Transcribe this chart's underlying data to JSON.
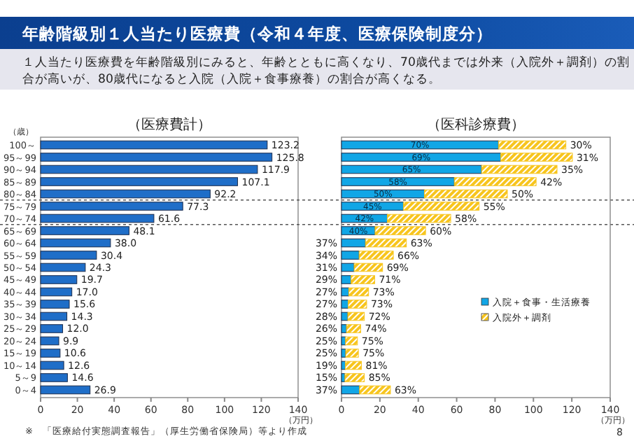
{
  "chart_data": [
    {
      "type": "other",
      "title": "年齢階級別１人当たり医療費（令和４年度、医療保険制度分）",
      "subtitle": "１人当たり医療費を年齢階級別にみると、年齢とともに高くなり、70歳代までは外来（入院外＋調剤）の割合が高いが、80歳代になると入院（入院＋食事療養）の割合が高くなる。",
      "annotations": [
        "※　「医療給付実態調査報告」（厚生労働省保険局）等より作成",
        "8"
      ]
    },
    {
      "type": "bar",
      "orientation": "horizontal",
      "title": "（医療費計）",
      "ylabel": "（歳）",
      "xlabel": "（万円）",
      "categories": [
        "100～",
        "95～99",
        "90～94",
        "85～89",
        "80～84",
        "75～79",
        "70～74",
        "65～69",
        "60～64",
        "55～59",
        "50～54",
        "45～49",
        "40～44",
        "35～39",
        "30～34",
        "25～29",
        "20～24",
        "15～19",
        "10～14",
        "5～9",
        "0～4"
      ],
      "values": [
        123.2,
        125.8,
        117.9,
        107.1,
        92.2,
        77.3,
        61.6,
        48.1,
        38.0,
        30.4,
        24.3,
        19.7,
        17.0,
        15.6,
        14.3,
        12.0,
        9.9,
        10.6,
        12.6,
        14.6,
        26.9
      ],
      "value_labels": [
        "123.2",
        "125.8",
        "117.9",
        "107.1",
        "92.2",
        "77.3",
        "61.6",
        "48.1",
        "38.0",
        "30.4",
        "24.3",
        "19.7",
        "17.0",
        "15.6",
        "14.3",
        "12.0",
        "9.9",
        "10.6",
        "12.6",
        "14.6",
        "26.9"
      ],
      "color": "#1f6ec8",
      "xlim": [
        0,
        140
      ],
      "xticks": [
        0,
        20,
        40,
        60,
        80,
        100,
        120,
        140
      ],
      "ref_lines": [
        {
          "axis": "y",
          "value": "80～84",
          "line_style": "dashed"
        },
        {
          "axis": "y",
          "value": "70～74",
          "line_style": "dashed"
        }
      ]
    },
    {
      "type": "bar",
      "orientation": "horizontal",
      "stacked": true,
      "title": "（医科診療費）",
      "xlabel": "（万円）",
      "tick_labels": "x",
      "legend": "right",
      "categories": [
        null,
        null,
        null,
        null,
        null,
        null,
        null,
        null,
        null,
        null,
        null,
        null,
        null,
        null,
        null,
        null,
        null,
        null,
        null,
        null,
        null
      ],
      "series": [
        {
          "name": "入院＋食事・生活療養",
          "color": "#11a6e6",
          "values": [
            81.8,
            83.0,
            73.0,
            58.8,
            43.2,
            32.3,
            23.9,
            17.5,
            12.5,
            9.2,
            6.6,
            5.0,
            3.8,
            3.5,
            3.3,
            2.6,
            2.1,
            2.2,
            2.0,
            1.8,
            9.4
          ]
        },
        {
          "name": "入院外＋調剤",
          "color": "#f7c51e",
          "values": [
            35.1,
            37.3,
            39.3,
            42.6,
            43.2,
            39.4,
            33.0,
            26.3,
            21.3,
            17.8,
            14.8,
            12.3,
            10.3,
            9.6,
            8.6,
            7.4,
            6.2,
            6.6,
            8.4,
            10.1,
            16.1
          ]
        }
      ],
      "annotations": [
        {
          "text": "70%",
          "x": 40.9
        },
        {
          "text": "69%",
          "x": 41.5
        },
        {
          "text": "65%",
          "x": 36.5
        },
        {
          "text": "58%",
          "x": 29.4
        },
        {
          "text": "50%",
          "x": 21.6
        },
        {
          "text": "45%",
          "x": 16.2
        },
        {
          "text": "42%",
          "x": 12.0
        },
        {
          "text": "40%",
          "x": 8.8
        },
        {
          "text": "37%",
          "x": 12.5
        },
        {
          "text": "34%",
          "x": 9.2
        },
        {
          "text": "31%",
          "x": 6.6
        },
        {
          "text": "29%",
          "x": 5.0
        },
        {
          "text": "27%",
          "x": 3.8
        },
        {
          "text": "27%",
          "x": 3.5
        },
        {
          "text": "28%",
          "x": 3.3
        },
        {
          "text": "26%",
          "x": 2.6
        },
        {
          "text": "25%",
          "x": 2.1
        },
        {
          "text": "25%",
          "x": 2.2
        },
        {
          "text": "19%",
          "x": 2.0
        },
        {
          "text": "15%",
          "x": 1.8
        },
        {
          "text": "37%",
          "x": 9.4
        },
        {
          "text": "30%",
          "x": 116.9
        },
        {
          "text": "31%",
          "x": 120.3
        },
        {
          "text": "35%",
          "x": 112.3
        },
        {
          "text": "42%",
          "x": 101.4
        },
        {
          "text": "50%",
          "x": 86.4
        },
        {
          "text": "55%",
          "x": 71.7
        },
        {
          "text": "58%",
          "x": 56.9
        },
        {
          "text": "60%",
          "x": 43.8
        },
        {
          "text": "63%",
          "x": 33.8
        },
        {
          "text": "66%",
          "x": 27.0
        },
        {
          "text": "69%",
          "x": 21.4
        },
        {
          "text": "71%",
          "x": 17.3
        },
        {
          "text": "73%",
          "x": 14.1
        },
        {
          "text": "73%",
          "x": 13.1
        },
        {
          "text": "72%",
          "x": 11.9
        },
        {
          "text": "74%",
          "x": 10.0
        },
        {
          "text": "75%",
          "x": 8.3
        },
        {
          "text": "75%",
          "x": 8.8
        },
        {
          "text": "81%",
          "x": 10.4
        },
        {
          "text": "85%",
          "x": 11.9
        },
        {
          "text": "63%",
          "x": 25.5
        }
      ],
      "xlim": [
        0,
        140
      ],
      "xticks": [
        0,
        20,
        40,
        60,
        80,
        100,
        120,
        140
      ]
    }
  ]
}
